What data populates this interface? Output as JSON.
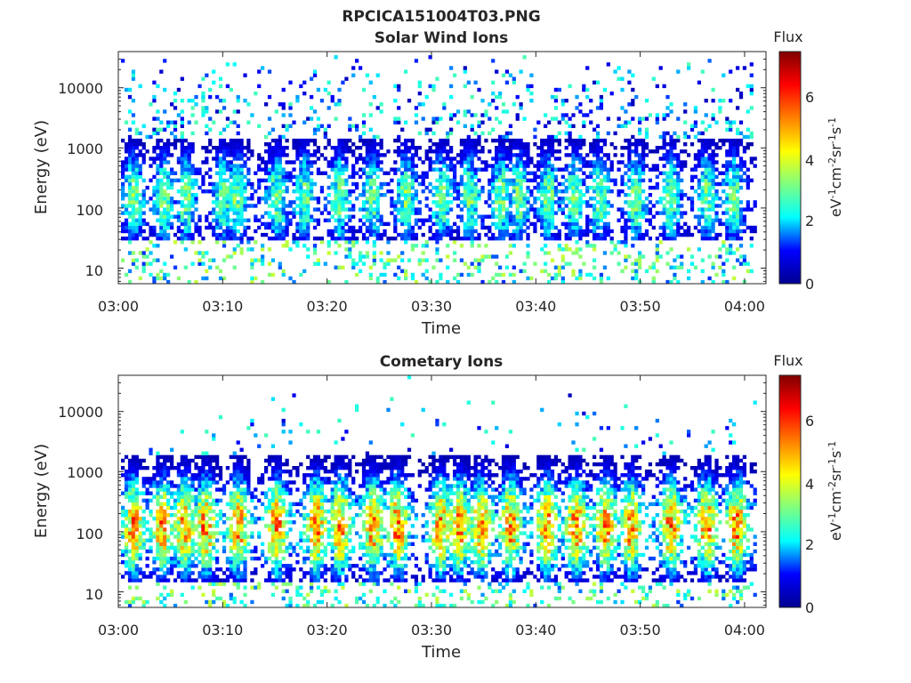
{
  "figure": {
    "title": "RPCICA151004T03.PNG",
    "colorbar_colormap": "jet",
    "colorbar_colors": [
      "#00008f",
      "#0000ff",
      "#00ffff",
      "#80ff80",
      "#ffff00",
      "#ff8000",
      "#ff0000",
      "#800000"
    ]
  },
  "chart_data": [
    {
      "type": "heatmap",
      "title": "Solar Wind Ions",
      "xlabel": "Time",
      "ylabel": "Energy (eV)",
      "y_scale": "log",
      "x_ticks": [
        "03:00",
        "03:10",
        "03:20",
        "03:30",
        "03:40",
        "03:50",
        "04:00"
      ],
      "x_range": [
        "03:00",
        "04:01"
      ],
      "y_ticks": [
        "10",
        "100",
        "1000",
        "10000"
      ],
      "y_range": [
        5.5,
        40000
      ],
      "colorbar": {
        "title": "Flux",
        "label": "eV-1cm-2sr-1s-1",
        "range": [
          0,
          7.4
        ],
        "ticks": [
          "0",
          "2",
          "4",
          "6"
        ]
      },
      "bursts_minutes": [
        1.2,
        4.1,
        6.2,
        9.8,
        11.1,
        14.9,
        17.6,
        20.9,
        24.0,
        27.3,
        30.7,
        33.4,
        36.4,
        38.1,
        40.9,
        43.4,
        45.8,
        49.3,
        52.6,
        56.1,
        58.7
      ],
      "peak_flux": 3.3,
      "core_energy_ev": [
        30,
        1500
      ]
    },
    {
      "type": "heatmap",
      "title": "Cometary Ions",
      "xlabel": "Time",
      "ylabel": "Energy (eV)",
      "y_scale": "log",
      "x_ticks": [
        "03:00",
        "03:10",
        "03:20",
        "03:30",
        "03:40",
        "03:50",
        "04:00"
      ],
      "x_range": [
        "03:00",
        "04:01"
      ],
      "y_ticks": [
        "10",
        "100",
        "1000",
        "10000"
      ],
      "y_range": [
        5.5,
        40000
      ],
      "colorbar": {
        "title": "Flux",
        "label": "eV-1cm-2sr-1s-1",
        "range": [
          0,
          7.4
        ],
        "ticks": [
          "0",
          "2",
          "4",
          "6"
        ]
      },
      "bursts_minutes": [
        1.2,
        3.9,
        6.1,
        8.1,
        11.2,
        14.9,
        18.7,
        21.0,
        24.1,
        26.5,
        30.6,
        32.4,
        34.5,
        37.3,
        40.8,
        43.6,
        46.4,
        48.9,
        52.7,
        56.1,
        59.0
      ],
      "peak_flux": 5.6,
      "core_energy_ev": [
        15,
        2000
      ]
    }
  ]
}
